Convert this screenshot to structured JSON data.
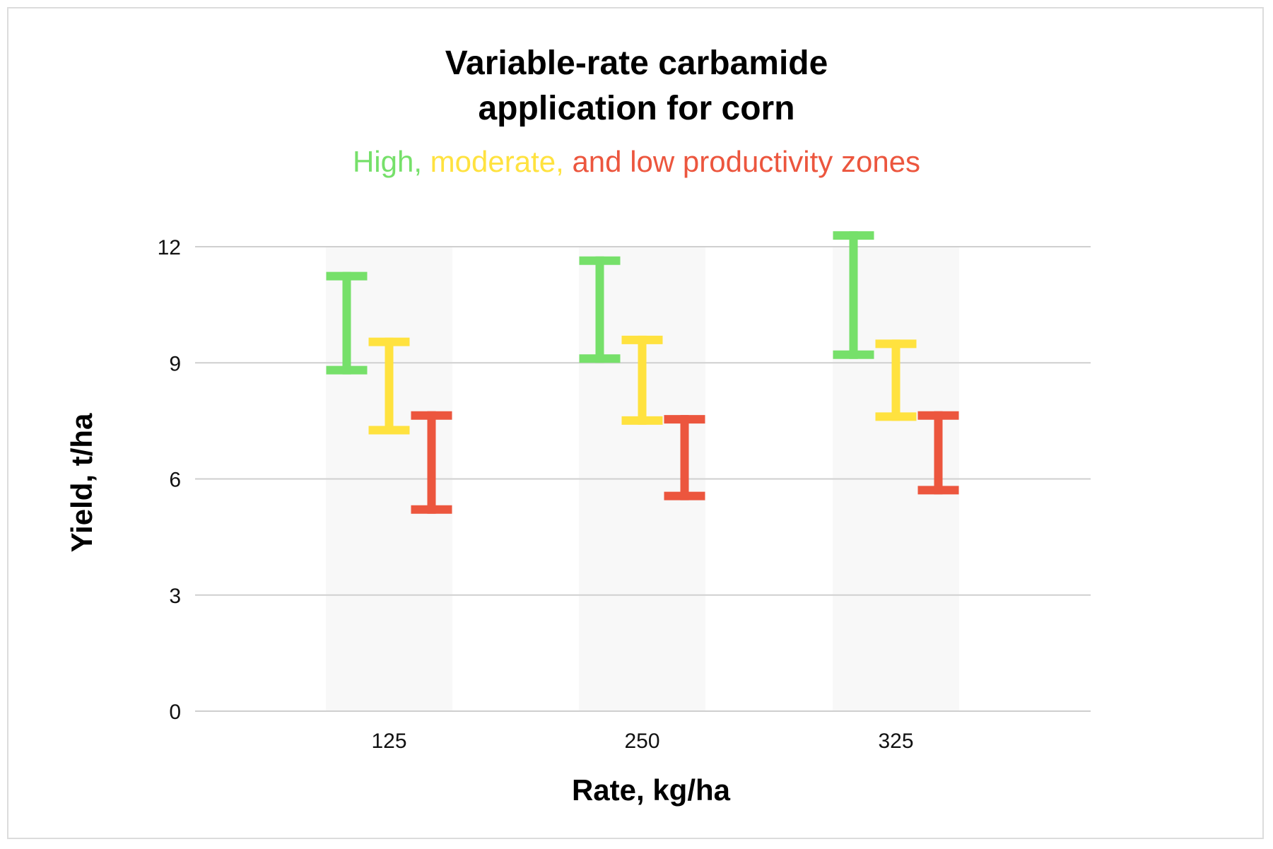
{
  "chart_data": {
    "type": "errorbar",
    "title_lines": [
      "Variable-rate carbamide",
      "application for corn"
    ],
    "subtitle_parts": [
      {
        "text": "High,",
        "color": "#76e06a"
      },
      {
        "text": "moderate,",
        "color": "#ffe23f"
      },
      {
        "text": "and low productivity zones",
        "color": "#ec563e"
      }
    ],
    "xlabel": "Rate, kg/ha",
    "ylabel": "Yield, t/ha",
    "ylim": [
      0,
      12
    ],
    "yticks": [
      "0",
      "3",
      "6",
      "9",
      "12"
    ],
    "ytick_values": [
      0,
      3,
      6,
      9,
      12
    ],
    "categories": [
      "125",
      "250",
      "325"
    ],
    "grid": true,
    "series": [
      {
        "name": "High productivity",
        "color": "#76e06a",
        "ranges": [
          [
            8.7,
            11.35
          ],
          [
            9.0,
            11.75
          ],
          [
            9.1,
            12.4
          ]
        ]
      },
      {
        "name": "Moderate productivity",
        "color": "#ffe23f",
        "ranges": [
          [
            7.15,
            9.65
          ],
          [
            7.4,
            9.7
          ],
          [
            7.5,
            9.6
          ]
        ]
      },
      {
        "name": "Low productivity",
        "color": "#ec563e",
        "ranges": [
          [
            5.1,
            7.75
          ],
          [
            5.45,
            7.65
          ],
          [
            5.6,
            7.75
          ]
        ]
      }
    ]
  }
}
